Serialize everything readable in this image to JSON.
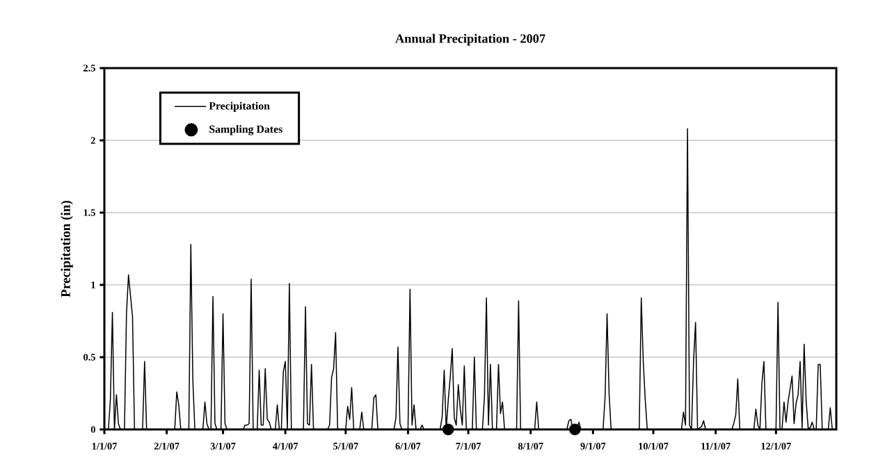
{
  "chart_data": {
    "type": "line",
    "title": "Annual Precipitation - 2007",
    "ylabel": "Precipitation (in)",
    "xlim": [
      "2007-01-01",
      "2007-12-31"
    ],
    "ylim": [
      0,
      2.5
    ],
    "yticks": [
      0,
      0.5,
      1,
      1.5,
      2,
      2.5
    ],
    "xticks": [
      {
        "value": "2007-01-01",
        "label": "1/1/07"
      },
      {
        "value": "2007-02-01",
        "label": "2/1/07"
      },
      {
        "value": "2007-03-01",
        "label": "3/1/07"
      },
      {
        "value": "2007-04-01",
        "label": "4/1/07"
      },
      {
        "value": "2007-05-01",
        "label": "5/1/07"
      },
      {
        "value": "2007-06-01",
        "label": "6/1/07"
      },
      {
        "value": "2007-07-01",
        "label": "7/1/07"
      },
      {
        "value": "2007-08-01",
        "label": "8/1/07"
      },
      {
        "value": "2007-09-01",
        "label": "9/1/07"
      },
      {
        "value": "2007-10-01",
        "label": "10/1/07"
      },
      {
        "value": "2007-11-01",
        "label": "11/1/07"
      },
      {
        "value": "2007-12-01",
        "label": "12/1/07"
      }
    ],
    "grid": "y",
    "legend": "top left",
    "series": [
      {
        "name": "Precipitation",
        "color": "#000000",
        "marker": "none",
        "line_style": "solid",
        "x": [
          "2007-01-01",
          "2007-01-03",
          "2007-01-04",
          "2007-01-05",
          "2007-01-06",
          "2007-01-07",
          "2007-01-08",
          "2007-01-09",
          "2007-01-11",
          "2007-01-12",
          "2007-01-13",
          "2007-01-15",
          "2007-01-16",
          "2007-01-20",
          "2007-01-21",
          "2007-01-22",
          "2007-02-05",
          "2007-02-06",
          "2007-02-07",
          "2007-02-08",
          "2007-02-12",
          "2007-02-13",
          "2007-02-14",
          "2007-02-15",
          "2007-02-19",
          "2007-02-20",
          "2007-02-21",
          "2007-02-22",
          "2007-02-23",
          "2007-02-24",
          "2007-02-25",
          "2007-02-26",
          "2007-02-28",
          "2007-03-01",
          "2007-03-02",
          "2007-03-03",
          "2007-03-11",
          "2007-03-12",
          "2007-03-13",
          "2007-03-14",
          "2007-03-15",
          "2007-03-16",
          "2007-03-18",
          "2007-03-19",
          "2007-03-20",
          "2007-03-21",
          "2007-03-22",
          "2007-03-23",
          "2007-03-24",
          "2007-03-25",
          "2007-03-27",
          "2007-03-28",
          "2007-03-29",
          "2007-03-30",
          "2007-03-31",
          "2007-04-01",
          "2007-04-02",
          "2007-04-03",
          "2007-04-04",
          "2007-04-10",
          "2007-04-11",
          "2007-04-12",
          "2007-04-13",
          "2007-04-14",
          "2007-04-15",
          "2007-04-22",
          "2007-04-23",
          "2007-04-24",
          "2007-04-25",
          "2007-04-26",
          "2007-04-27",
          "2007-05-01",
          "2007-05-02",
          "2007-05-03",
          "2007-05-04",
          "2007-05-05",
          "2007-05-08",
          "2007-05-09",
          "2007-05-10",
          "2007-05-14",
          "2007-05-15",
          "2007-05-16",
          "2007-05-17",
          "2007-05-25",
          "2007-05-26",
          "2007-05-27",
          "2007-05-28",
          "2007-05-29",
          "2007-06-01",
          "2007-06-02",
          "2007-06-03",
          "2007-06-04",
          "2007-06-05",
          "2007-06-07",
          "2007-06-08",
          "2007-06-09",
          "2007-06-17",
          "2007-06-18",
          "2007-06-19",
          "2007-06-20",
          "2007-06-21",
          "2007-06-22",
          "2007-06-23",
          "2007-06-24",
          "2007-06-25",
          "2007-06-26",
          "2007-06-27",
          "2007-06-28",
          "2007-06-29",
          "2007-06-30",
          "2007-07-03",
          "2007-07-04",
          "2007-07-05",
          "2007-07-08",
          "2007-07-09",
          "2007-07-10",
          "2007-07-11",
          "2007-07-12",
          "2007-07-13",
          "2007-07-15",
          "2007-07-16",
          "2007-07-17",
          "2007-07-18",
          "2007-07-19",
          "2007-07-25",
          "2007-07-26",
          "2007-07-27",
          "2007-08-03",
          "2007-08-04",
          "2007-08-05",
          "2007-08-19",
          "2007-08-20",
          "2007-08-21",
          "2007-08-22",
          "2007-08-24",
          "2007-08-25",
          "2007-08-26",
          "2007-09-06",
          "2007-09-07",
          "2007-09-08",
          "2007-09-09",
          "2007-09-10",
          "2007-09-24",
          "2007-09-25",
          "2007-09-26",
          "2007-09-27",
          "2007-09-28",
          "2007-10-15",
          "2007-10-16",
          "2007-10-17",
          "2007-10-18",
          "2007-10-19",
          "2007-10-20",
          "2007-10-21",
          "2007-10-22",
          "2007-10-23",
          "2007-10-25",
          "2007-10-26",
          "2007-10-27",
          "2007-11-09",
          "2007-11-10",
          "2007-11-11",
          "2007-11-12",
          "2007-11-13",
          "2007-11-20",
          "2007-11-21",
          "2007-11-22",
          "2007-11-23",
          "2007-11-24",
          "2007-11-25",
          "2007-11-26",
          "2007-12-01",
          "2007-12-02",
          "2007-12-03",
          "2007-12-04",
          "2007-12-05",
          "2007-12-06",
          "2007-12-07",
          "2007-12-08",
          "2007-12-09",
          "2007-12-10",
          "2007-12-11",
          "2007-12-12",
          "2007-12-13",
          "2007-12-14",
          "2007-12-15",
          "2007-12-16",
          "2007-12-17",
          "2007-12-18",
          "2007-12-19",
          "2007-12-20",
          "2007-12-21",
          "2007-12-22",
          "2007-12-23",
          "2007-12-24",
          "2007-12-27",
          "2007-12-28",
          "2007-12-29",
          "2007-12-31"
        ],
        "values": [
          0,
          0,
          0.21,
          0.81,
          0,
          0.24,
          0.04,
          0,
          0,
          0.8,
          1.07,
          0.78,
          0,
          0,
          0.47,
          0,
          0,
          0.26,
          0.17,
          0,
          0,
          1.28,
          0.34,
          0,
          0,
          0.19,
          0.04,
          0,
          0,
          0.92,
          0.04,
          0,
          0,
          0.8,
          0.04,
          0,
          0,
          0.03,
          0.03,
          0.04,
          1.04,
          0,
          0,
          0.41,
          0.03,
          0.03,
          0.42,
          0.07,
          0.05,
          0,
          0,
          0.17,
          0,
          0,
          0.4,
          0.47,
          0,
          1.01,
          0,
          0,
          0.85,
          0.04,
          0.03,
          0.45,
          0,
          0,
          0.03,
          0.36,
          0.42,
          0.67,
          0,
          0,
          0.16,
          0.07,
          0.29,
          0,
          0,
          0.12,
          0,
          0,
          0.22,
          0.24,
          0,
          0,
          0.08,
          0.57,
          0.04,
          0,
          0,
          0.97,
          0.03,
          0.17,
          0,
          0,
          0.03,
          0,
          0,
          0.09,
          0.41,
          0,
          0.2,
          0.36,
          0.56,
          0.08,
          0.03,
          0.31,
          0.14,
          0.03,
          0.44,
          0,
          0,
          0.5,
          0,
          0,
          0.22,
          0.91,
          0.03,
          0.45,
          0,
          0,
          0.45,
          0.11,
          0.19,
          0,
          0,
          0.89,
          0,
          0,
          0.19,
          0,
          0,
          0.06,
          0.07,
          0,
          0,
          0.05,
          0,
          0,
          0.22,
          0.8,
          0.25,
          0,
          0,
          0.91,
          0.47,
          0.2,
          0,
          0,
          0.12,
          0.03,
          2.08,
          0.03,
          0,
          0.47,
          0.74,
          0,
          0.02,
          0.06,
          0,
          0,
          0.04,
          0.1,
          0.35,
          0,
          0,
          0.14,
          0.03,
          0,
          0.32,
          0.47,
          0,
          0,
          0.88,
          0,
          0,
          0.19,
          0.05,
          0.19,
          0.28,
          0.37,
          0.04,
          0.18,
          0.24,
          0.47,
          0.01,
          0.59,
          0.2,
          0.01,
          0.01,
          0.05,
          0,
          0,
          0.45,
          0.45,
          0,
          0,
          0.15,
          0,
          0
        ]
      },
      {
        "name": "Sampling Dates",
        "type": "scatter",
        "color": "#000000",
        "marker": "circle",
        "x": [
          "2007-06-21",
          "2007-08-23"
        ],
        "values": [
          0,
          0
        ]
      }
    ]
  }
}
